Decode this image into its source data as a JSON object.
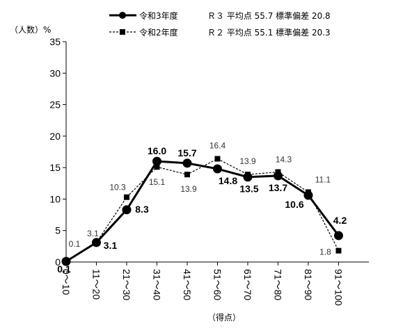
{
  "chart_data": {
    "type": "line",
    "ylabel": "（人数）%",
    "xlabel": "（得点）",
    "ylim": [
      0,
      35
    ],
    "yticks": [
      0,
      5,
      10,
      15,
      20,
      25,
      30,
      35
    ],
    "categories": [
      "0～10",
      "11～20",
      "21～30",
      "31～40",
      "41～50",
      "51～60",
      "61～70",
      "71～80",
      "81～90",
      "91～100"
    ],
    "series": [
      {
        "name": "令和3年度",
        "values": [
          0.1,
          3.1,
          8.3,
          16.0,
          15.7,
          14.8,
          13.5,
          13.7,
          10.6,
          4.2
        ],
        "labels": [
          "0.1",
          "3.1",
          "8.3",
          "16.0",
          "15.7",
          "14.8",
          "13.5",
          "13.7",
          "10.6",
          "4.2"
        ],
        "stat": "Ｒ３ 平均点 55.7 標準偏差 20.8",
        "color": "#000000",
        "marker": "circle",
        "dash": "solid"
      },
      {
        "name": "令和2年度",
        "values": [
          0.1,
          3.1,
          10.3,
          15.1,
          13.9,
          16.4,
          13.9,
          14.3,
          11.1,
          1.8
        ],
        "labels": [
          "0.1",
          "3.1",
          "10.3",
          "15.1",
          "13.9",
          "16.4",
          "13.9",
          "14.3",
          "11.1",
          "1.8"
        ],
        "stat": "Ｒ２ 平均点 55.1 標準偏差 20.3",
        "color": "#000000",
        "marker": "square",
        "dash": "dashed"
      }
    ],
    "grid": false,
    "legend_position": "top"
  }
}
